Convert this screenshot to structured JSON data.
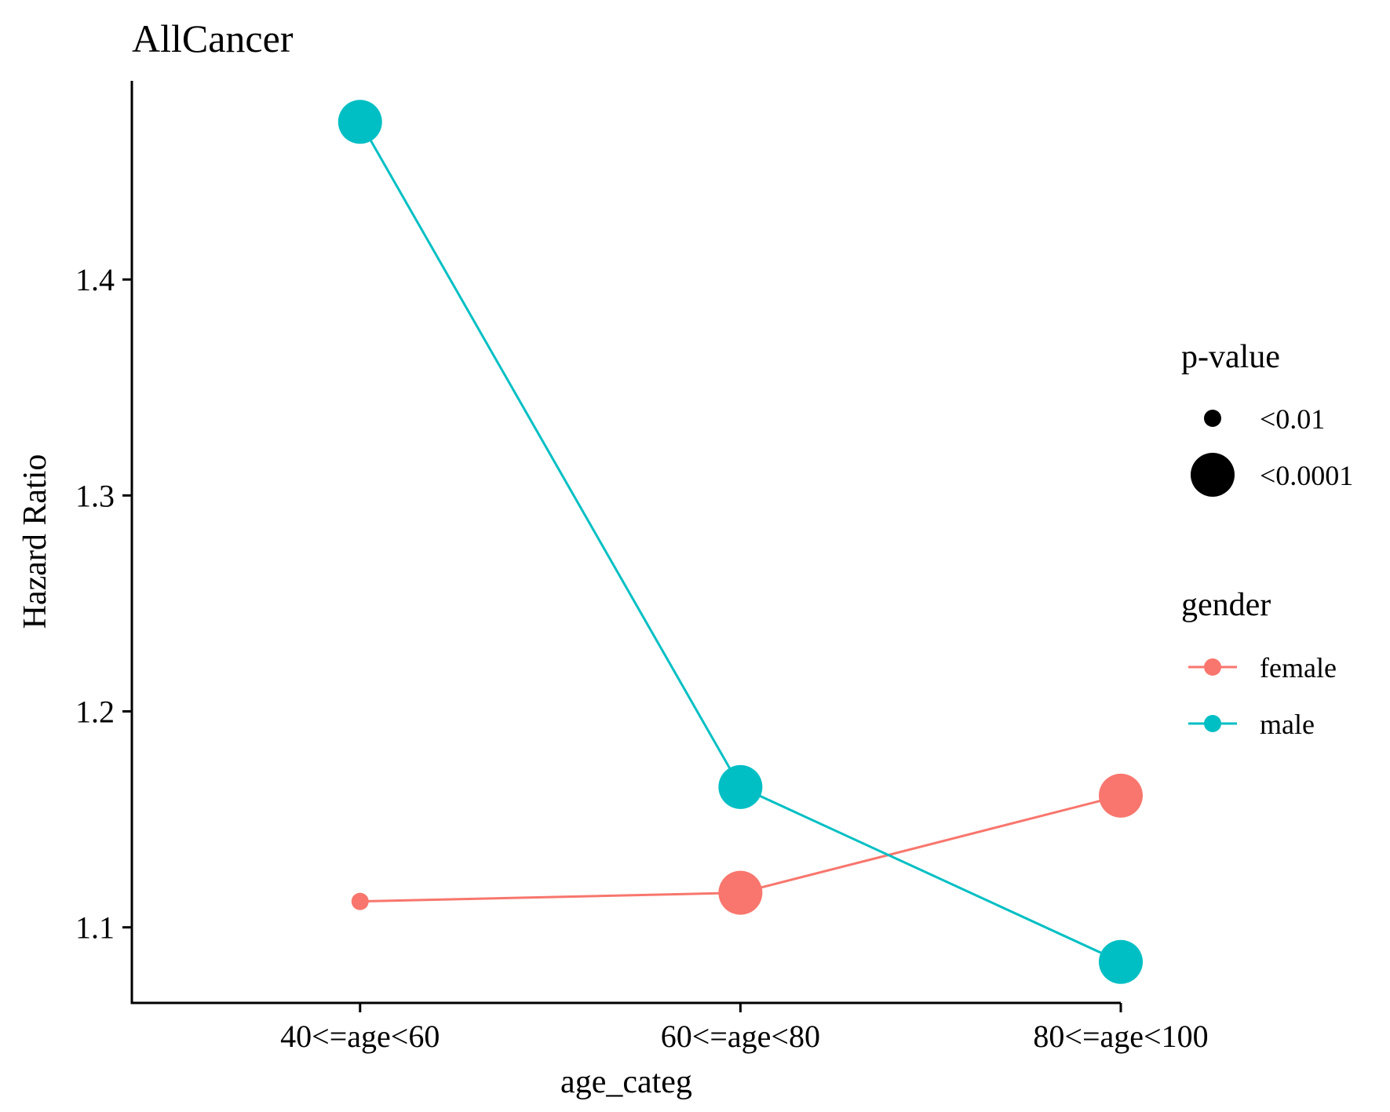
{
  "chart_data": {
    "type": "line",
    "title": "AllCancer",
    "xlabel": "age_categ",
    "ylabel": "Hazard Ratio",
    "categories": [
      "40<=age<60",
      "60<=age<80",
      "80<=age<100"
    ],
    "ylim": [
      1.065,
      1.492
    ],
    "yticks": [
      1.1,
      1.2,
      1.3,
      1.4
    ],
    "ytick_labels": [
      "1.1",
      "1.2",
      "1.3",
      "1.4"
    ],
    "grid": false,
    "legend_position": "right",
    "series": [
      {
        "name": "female",
        "color": "#F8766D",
        "values": [
          1.112,
          1.116,
          1.161
        ],
        "pvalue": [
          "<0.01",
          "<0.0001",
          "<0.0001"
        ]
      },
      {
        "name": "male",
        "color": "#00BFC4",
        "values": [
          1.473,
          1.165,
          1.084
        ],
        "pvalue": [
          "<0.0001",
          "<0.0001",
          "<0.0001"
        ]
      }
    ],
    "legends": {
      "size": {
        "title": "p-value",
        "items": [
          {
            "label": "<0.01",
            "size": "small"
          },
          {
            "label": "<0.0001",
            "size": "large"
          }
        ]
      },
      "color": {
        "title": "gender",
        "items": [
          {
            "label": "female",
            "color": "#F8766D"
          },
          {
            "label": "male",
            "color": "#00BFC4"
          }
        ]
      }
    }
  }
}
